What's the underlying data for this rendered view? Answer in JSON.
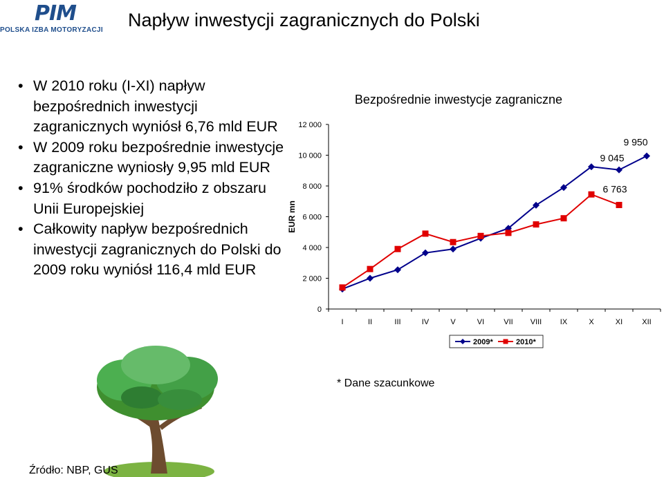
{
  "logo": {
    "mark": "PIM",
    "sub": "POLSKA IZBA MOTORYZACJI"
  },
  "page": {
    "title": "Napływ inwestycji zagranicznych do Polski",
    "source": "Źródło: NBP, GUS",
    "note": "* Dane szacunkowe"
  },
  "bullets": [
    "W 2010 roku (I-XI) napływ bezpośrednich inwestycji zagranicznych wyniósł 6,76 mld EUR",
    "W 2009 roku bezpośrednie inwestycje zagraniczne wyniosły 9,95 mld EUR",
    "91% środków pochodziło z obszaru Unii Europejskiej",
    "Całkowity napływ bezpośrednich inwestycji zagranicznych do Polski do 2009 roku wyniósł 116,4 mld EUR"
  ],
  "colors": {
    "series_2009": "#00008b",
    "series_2010": "#e00000",
    "logo": "#1f4e8c"
  },
  "chart_data": {
    "type": "line",
    "title": "Bezpośrednie inwestycje zagraniczne",
    "ylabel": "EUR mn",
    "xlabel": "",
    "categories": [
      "I",
      "II",
      "III",
      "IV",
      "V",
      "VI",
      "VII",
      "VIII",
      "IX",
      "X",
      "XI",
      "XII"
    ],
    "ylim": [
      0,
      12000
    ],
    "yticks": [
      0,
      2000,
      4000,
      6000,
      8000,
      10000,
      12000
    ],
    "ytick_labels": [
      "0",
      "2 000",
      "4 000",
      "6 000",
      "8 000",
      "10 000",
      "12 000"
    ],
    "series": [
      {
        "name": "2009*",
        "marker": "diamond",
        "values": [
          1300,
          2000,
          2550,
          3650,
          3900,
          4600,
          5250,
          6750,
          7900,
          9250,
          9045,
          9950
        ]
      },
      {
        "name": "2010*",
        "marker": "square",
        "values": [
          1400,
          2600,
          3900,
          4900,
          4350,
          4750,
          4950,
          5500,
          5900,
          7450,
          6763,
          null
        ]
      }
    ],
    "data_labels": [
      {
        "series": 0,
        "index": 11,
        "text": "9 950"
      },
      {
        "series": 0,
        "index": 10,
        "text": "9 045"
      },
      {
        "series": 1,
        "index": 10,
        "text": "6 763"
      }
    ],
    "grid": false,
    "legend": "bottom"
  }
}
